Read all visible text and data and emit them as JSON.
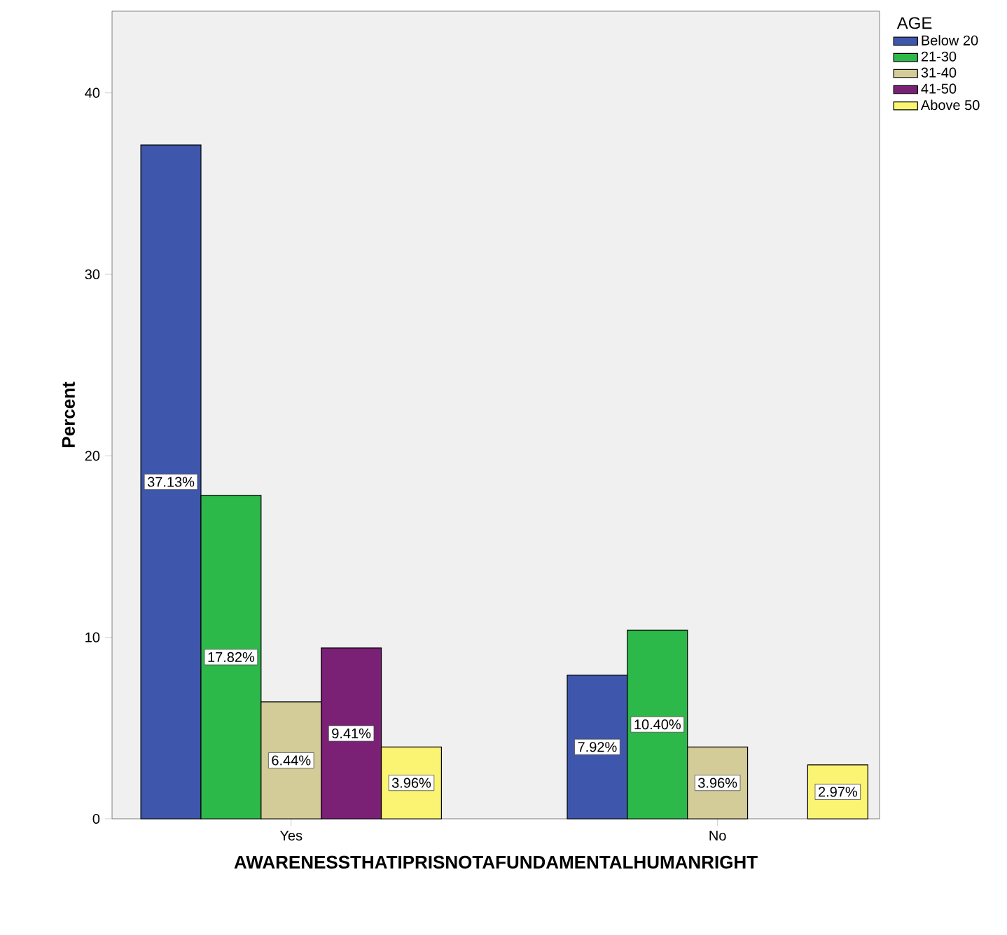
{
  "chart_data": {
    "type": "bar",
    "xlabel": "AWARENESSTHATIPRISNOTAFUNDAMENTALHUMANRIGHT",
    "ylabel": "Percent",
    "legend_title": "AGE",
    "legend": "top right",
    "grid": false,
    "categories": [
      "Yes",
      "No"
    ],
    "series": [
      {
        "name": "Below 20",
        "color": "#3e56ab",
        "values": [
          37.13,
          7.92
        ],
        "value_labels": [
          "37.13%",
          "7.92%"
        ]
      },
      {
        "name": "21-30",
        "color": "#2db84a",
        "values": [
          17.82,
          10.4
        ],
        "value_labels": [
          "17.82%",
          "10.40%"
        ]
      },
      {
        "name": "31-40",
        "color": "#d4cc98",
        "values": [
          6.44,
          3.96
        ],
        "value_labels": [
          "6.44%",
          "3.96%"
        ]
      },
      {
        "name": "41-50",
        "color": "#7a2176",
        "values": [
          9.41,
          null
        ],
        "value_labels": [
          "9.41%",
          null
        ]
      },
      {
        "name": "Above 50",
        "color": "#fbf472",
        "values": [
          3.96,
          2.97
        ],
        "value_labels": [
          "3.96%",
          "2.97%"
        ]
      }
    ],
    "ylim": [
      0,
      44.5
    ],
    "yticks": [
      0,
      10,
      20,
      30,
      40
    ]
  }
}
